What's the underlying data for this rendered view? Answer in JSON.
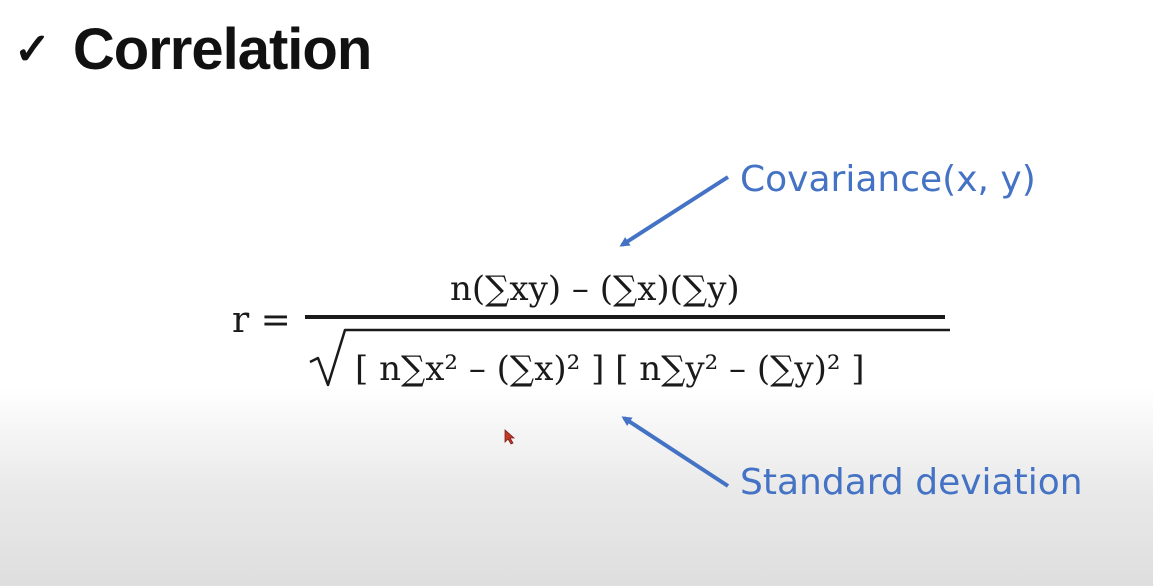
{
  "slide": {
    "title": "Correlation",
    "title_check": "✓",
    "formula": {
      "lhs": "r =",
      "numerator": "n(∑xy) – (∑x)(∑y)",
      "denominator": "[ n∑x² – (∑x)² ] [ n∑y² – (∑y)² ]"
    },
    "annotations": {
      "covariance": "Covariance(x, y)",
      "standard_deviation": "Standard deviation"
    },
    "colors": {
      "annotation": "#4472c4",
      "text": "#111111",
      "formula": "#1a1a1a",
      "cursor": "#c0392b"
    },
    "icons": {
      "title_marker": "check-icon",
      "cursor": "mouse-cursor-icon"
    }
  }
}
